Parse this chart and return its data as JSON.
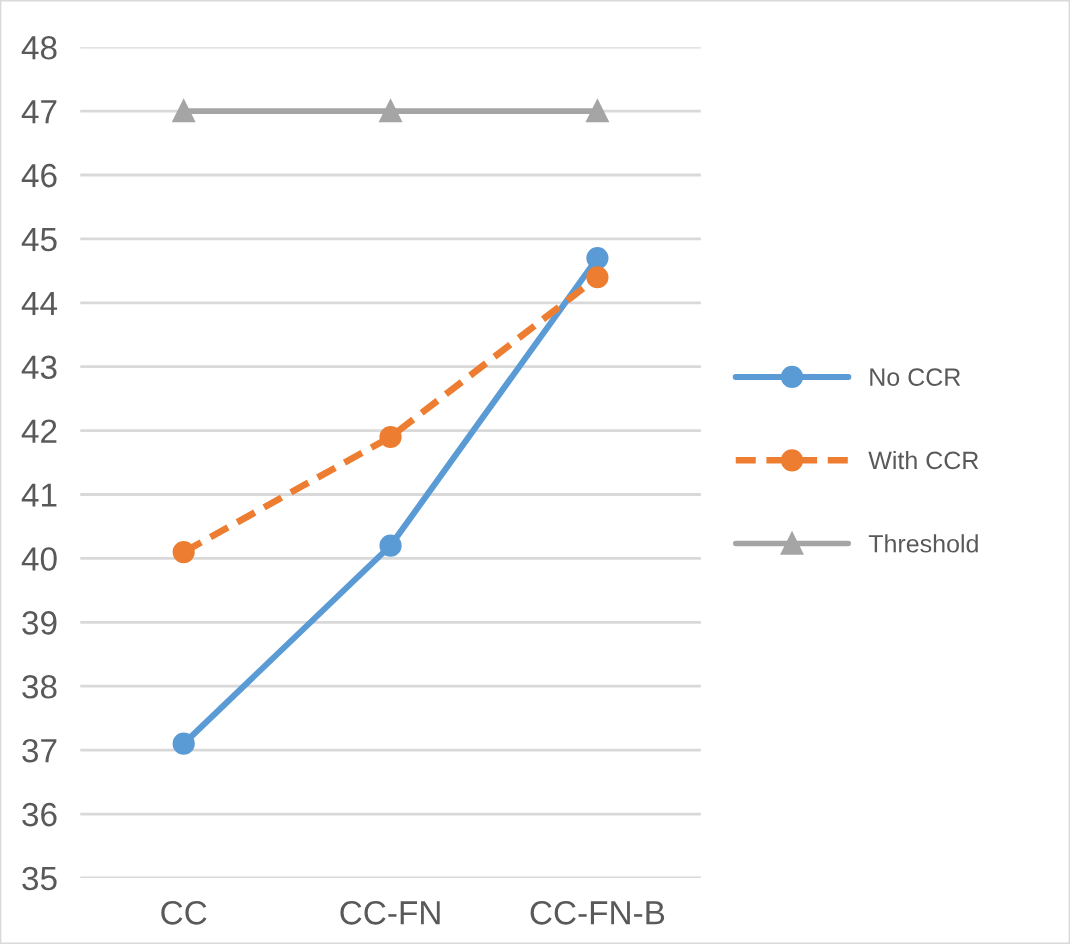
{
  "chart_data": {
    "type": "line",
    "categories": [
      "CC",
      "CC-FN",
      "CC-FN-B"
    ],
    "series": [
      {
        "name": "No CCR",
        "color": "#5b9bd5",
        "values": [
          37.1,
          40.2,
          44.7
        ],
        "marker": "circle",
        "line_style": "solid"
      },
      {
        "name": "With CCR",
        "color": "#ed7d31",
        "values": [
          40.1,
          41.9,
          44.4
        ],
        "marker": "circle",
        "line_style": "dashed"
      },
      {
        "name": "Threshold",
        "color": "#a5a5a5",
        "values": [
          47,
          47,
          47
        ],
        "marker": "triangle",
        "line_style": "solid"
      }
    ],
    "ylim": [
      35,
      48
    ],
    "yticks": [
      35,
      36,
      37,
      38,
      39,
      40,
      41,
      42,
      43,
      44,
      45,
      46,
      47,
      48
    ],
    "grid": "y",
    "legend": "right"
  }
}
